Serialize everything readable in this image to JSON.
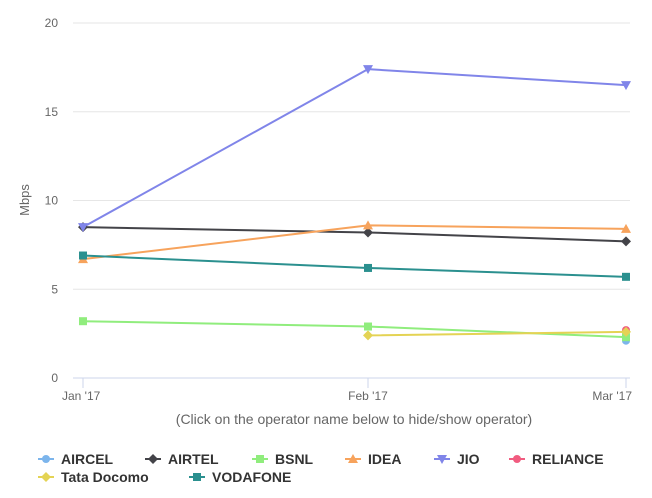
{
  "chart_data": {
    "type": "line",
    "categories": [
      "Jan '17",
      "Feb '17",
      "Mar '17"
    ],
    "ylabel": "Mbps",
    "xlabel": "(Click on the operator name below to hide/show operator)",
    "ylim": [
      0,
      20
    ],
    "yticks": [
      0,
      5,
      10,
      15,
      20
    ],
    "grid": "horizontal",
    "legend_placement": "bottom",
    "series": [
      {
        "name": "AIRCEL",
        "color": "#7cb5ec",
        "marker": "circle",
        "values": [
          null,
          null,
          2.1
        ]
      },
      {
        "name": "AIRTEL",
        "color": "#434348",
        "marker": "diamond",
        "values": [
          8.5,
          8.2,
          7.7
        ]
      },
      {
        "name": "BSNL",
        "color": "#90ed7d",
        "marker": "square",
        "values": [
          3.2,
          2.9,
          2.3
        ]
      },
      {
        "name": "IDEA",
        "color": "#f7a35c",
        "marker": "triangle",
        "values": [
          6.7,
          8.6,
          8.4
        ]
      },
      {
        "name": "JIO",
        "color": "#8085e9",
        "marker": "triangle-down",
        "values": [
          8.5,
          17.4,
          16.5
        ]
      },
      {
        "name": "RELIANCE",
        "color": "#f15c80",
        "marker": "circle",
        "values": [
          null,
          null,
          2.7
        ]
      },
      {
        "name": "Tata Docomo",
        "color": "#e4d354",
        "marker": "diamond",
        "values": [
          null,
          2.4,
          2.6
        ]
      },
      {
        "name": "VODAFONE",
        "color": "#2b908f",
        "marker": "square",
        "values": [
          6.9,
          6.2,
          5.7
        ]
      }
    ]
  }
}
